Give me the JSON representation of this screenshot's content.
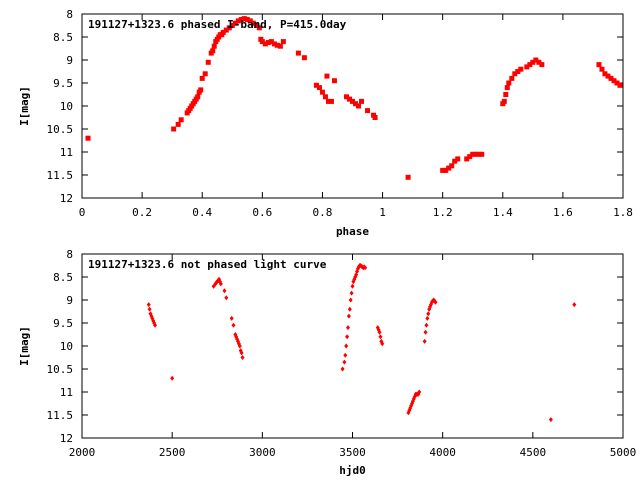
{
  "chart_data": [
    {
      "type": "scatter",
      "title": "191127+1323.6 phased I-band, P=415.0day",
      "xlabel": "phase",
      "ylabel": "I[mag]",
      "xlim": [
        0,
        1.8
      ],
      "ylim": [
        12,
        8
      ],
      "y_inverted": true,
      "xticks": [
        "0",
        "0.2",
        "0.4",
        "0.6",
        "0.8",
        "1",
        "1.2",
        "1.4",
        "1.6",
        "1.8"
      ],
      "yticks": [
        "8",
        "8.5",
        "9",
        "9.5",
        "10",
        "10.5",
        "11",
        "11.5",
        "12"
      ],
      "grid": false,
      "marker_color": "#ff0000",
      "series": [
        {
          "x": [
            0.02,
            0.305,
            0.32,
            0.33,
            0.35,
            0.355,
            0.36,
            0.365,
            0.37,
            0.375,
            0.38,
            0.385,
            0.39,
            0.395,
            0.4,
            0.41,
            0.42,
            0.43,
            0.435,
            0.44,
            0.445,
            0.45,
            0.455,
            0.46,
            0.465,
            0.47,
            0.48,
            0.49,
            0.5,
            0.51,
            0.52,
            0.53,
            0.54,
            0.55,
            0.56,
            0.57,
            0.58,
            0.59,
            0.595,
            0.6,
            0.61,
            0.62,
            0.63,
            0.64,
            0.65,
            0.66,
            0.67,
            0.72,
            0.74,
            0.78,
            0.79,
            0.8,
            0.81,
            0.815,
            0.82,
            0.83,
            0.84,
            0.88,
            0.89,
            0.9,
            0.91,
            0.92,
            0.93,
            0.95,
            0.97,
            0.975,
            1.085,
            1.2,
            1.21,
            1.22,
            1.23,
            1.24,
            1.25,
            1.28,
            1.29,
            1.3,
            1.31,
            1.32,
            1.33,
            1.4,
            1.405,
            1.41,
            1.415,
            1.42,
            1.43,
            1.44,
            1.45,
            1.46,
            1.48,
            1.49,
            1.5,
            1.51,
            1.52,
            1.53,
            1.72,
            1.73,
            1.74,
            1.75,
            1.76,
            1.77,
            1.78,
            1.79
          ],
          "y": [
            10.7,
            10.5,
            10.4,
            10.3,
            10.15,
            10.1,
            10.05,
            10.0,
            9.95,
            9.9,
            9.85,
            9.8,
            9.7,
            9.65,
            9.4,
            9.3,
            9.05,
            8.85,
            8.8,
            8.7,
            8.6,
            8.55,
            8.5,
            8.45,
            8.45,
            8.4,
            8.35,
            8.3,
            8.25,
            8.2,
            8.15,
            8.12,
            8.1,
            8.12,
            8.15,
            8.2,
            8.25,
            8.3,
            8.55,
            8.6,
            8.65,
            8.62,
            8.6,
            8.65,
            8.68,
            8.7,
            8.6,
            8.85,
            8.95,
            9.55,
            9.6,
            9.7,
            9.8,
            9.35,
            9.9,
            9.9,
            9.45,
            9.8,
            9.85,
            9.9,
            9.95,
            10.0,
            9.9,
            10.1,
            10.2,
            10.25,
            11.55,
            11.4,
            11.4,
            11.35,
            11.3,
            11.2,
            11.15,
            11.15,
            11.1,
            11.05,
            11.05,
            11.05,
            11.05,
            9.95,
            9.9,
            9.75,
            9.6,
            9.5,
            9.4,
            9.3,
            9.25,
            9.2,
            9.15,
            9.1,
            9.05,
            9.0,
            9.05,
            9.1,
            9.1,
            9.2,
            9.3,
            9.35,
            9.4,
            9.45,
            9.5,
            9.55
          ]
        }
      ]
    },
    {
      "type": "scatter",
      "title": "191127+1323.6 not phased light curve",
      "xlabel": "hjd0",
      "ylabel": "I[mag]",
      "xlim": [
        2000,
        5000
      ],
      "ylim": [
        12,
        8
      ],
      "y_inverted": true,
      "xticks": [
        "2000",
        "2500",
        "3000",
        "3500",
        "4000",
        "4500",
        "5000"
      ],
      "yticks": [
        "8",
        "8.5",
        "9",
        "9.5",
        "10",
        "10.5",
        "11",
        "11.5",
        "12"
      ],
      "grid": false,
      "marker_color": "#ff0000",
      "series": [
        {
          "x": [
            2370,
            2375,
            2380,
            2385,
            2390,
            2395,
            2400,
            2405,
            2500,
            2730,
            2740,
            2745,
            2750,
            2755,
            2760,
            2765,
            2770,
            2790,
            2800,
            2830,
            2840,
            2850,
            2855,
            2860,
            2865,
            2870,
            2875,
            2880,
            2885,
            2890,
            3445,
            3455,
            3460,
            3465,
            3470,
            3475,
            3480,
            3485,
            3490,
            3495,
            3500,
            3505,
            3510,
            3515,
            3520,
            3525,
            3530,
            3535,
            3540,
            3545,
            3550,
            3555,
            3560,
            3565,
            3570,
            3640,
            3645,
            3650,
            3655,
            3660,
            3665,
            3810,
            3815,
            3820,
            3825,
            3830,
            3835,
            3840,
            3845,
            3850,
            3855,
            3860,
            3865,
            3870,
            3900,
            3905,
            3910,
            3915,
            3920,
            3925,
            3930,
            3935,
            3940,
            3945,
            3950,
            3955,
            3960,
            4600,
            4730
          ],
          "y": [
            9.1,
            9.2,
            9.3,
            9.35,
            9.4,
            9.45,
            9.5,
            9.55,
            10.7,
            8.7,
            8.65,
            8.62,
            8.6,
            8.58,
            8.55,
            8.6,
            8.65,
            8.8,
            8.95,
            9.4,
            9.55,
            9.75,
            9.8,
            9.85,
            9.9,
            9.95,
            10.0,
            10.1,
            10.15,
            10.25,
            10.5,
            10.35,
            10.2,
            10.0,
            9.8,
            9.6,
            9.35,
            9.2,
            9.0,
            8.85,
            8.7,
            8.6,
            8.55,
            8.5,
            8.45,
            8.38,
            8.32,
            8.28,
            8.25,
            8.25,
            8.27,
            8.28,
            8.3,
            8.28,
            8.3,
            9.6,
            9.65,
            9.7,
            9.8,
            9.9,
            9.95,
            11.45,
            11.4,
            11.35,
            11.3,
            11.25,
            11.2,
            11.15,
            11.1,
            11.05,
            11.05,
            11.05,
            11.05,
            11.0,
            9.9,
            9.7,
            9.55,
            9.4,
            9.3,
            9.2,
            9.15,
            9.1,
            9.05,
            9.02,
            9.0,
            9.02,
            9.05,
            11.6,
            9.1
          ]
        }
      ]
    }
  ]
}
